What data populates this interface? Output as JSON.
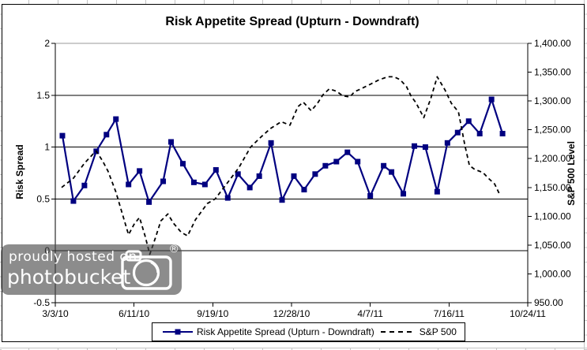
{
  "title": "Risk Appetite Spread (Upturn - Downdraft)",
  "axes": {
    "left": {
      "title": "Risk Spread"
    },
    "right": {
      "title": "S&P 500 Level"
    }
  },
  "legend": {
    "items": [
      {
        "label": "Risk Appetite Spread (Upturn - Downdraft)",
        "style": "solid-line-square-marker",
        "color": "#000080"
      },
      {
        "label": "S&P 500",
        "style": "dashed-line",
        "color": "#000000"
      }
    ]
  },
  "watermark": {
    "line1": "proudly hosted on",
    "line2": "photobucket",
    "registered_mark": "®"
  },
  "colors": {
    "risk_series": "#000080",
    "sp_series": "#000000",
    "gridline": "#000000",
    "plot_top_border": "#9a9a9a",
    "watermark_bg_rgba": "rgba(70,70,70,0.62)",
    "watermark_text": "#ffffff"
  },
  "chart_data": {
    "type": "line",
    "title": "Risk Appetite Spread (Upturn - Downdraft)",
    "x_unit": "days since 3/3/10",
    "xlim": [
      0,
      600
    ],
    "x_tick_days": [
      0,
      100,
      200,
      300,
      400,
      500,
      600
    ],
    "x_tick_labels": [
      "3/3/10",
      "6/11/10",
      "9/19/10",
      "12/28/10",
      "4/7/11",
      "7/16/11",
      "10/24/11"
    ],
    "left_ylim": [
      -0.5,
      2
    ],
    "left_ylabel": "Risk Spread",
    "left_tick_values": [
      2,
      1.5,
      1,
      0.5,
      0,
      -0.5
    ],
    "left_tick_labels": [
      "2",
      "1.5",
      "1",
      "0.5",
      "0",
      "-0.5"
    ],
    "right_ylim": [
      950,
      1400
    ],
    "right_ylabel": "S&P 500 Level",
    "right_tick_values": [
      1400,
      1350,
      1300,
      1250,
      1200,
      1150,
      1100,
      1050,
      1000,
      950
    ],
    "right_tick_labels": [
      "1,400.00",
      "1,350.00",
      "1,300.00",
      "1,250.00",
      "1,200.00",
      "1,150.00",
      "1,100.00",
      "1,050.00",
      "1,000.00",
      "950.00"
    ],
    "grid": "horizontal-black",
    "legend_position": "bottom",
    "series": [
      {
        "name": "Risk Appetite Spread (Upturn - Downdraft)",
        "axis": "left",
        "color": "#000080",
        "marker": "square",
        "line_style": "solid",
        "x_days": [
          9,
          23,
          37,
          52,
          65,
          77,
          93,
          107,
          119,
          137,
          147,
          162,
          176,
          190,
          204,
          219,
          232,
          247,
          259,
          274,
          288,
          303,
          316,
          330,
          343,
          357,
          371,
          384,
          400,
          417,
          427,
          442,
          456,
          470,
          485,
          498,
          511,
          525,
          539,
          554,
          568
        ],
        "values": [
          1.11,
          0.48,
          0.63,
          0.96,
          1.12,
          1.27,
          0.64,
          0.77,
          0.47,
          0.67,
          1.05,
          0.84,
          0.66,
          0.64,
          0.78,
          0.51,
          0.74,
          0.61,
          0.72,
          1.04,
          0.49,
          0.72,
          0.59,
          0.74,
          0.82,
          0.86,
          0.95,
          0.86,
          0.53,
          0.82,
          0.76,
          0.55,
          1.01,
          1.0,
          0.57,
          1.04,
          1.14,
          1.25,
          1.13,
          1.46,
          1.13
        ]
      },
      {
        "name": "S&P 500",
        "axis": "right",
        "color": "#000000",
        "marker": "none",
        "line_style": "dashed",
        "x_days": [
          8,
          23,
          37,
          48,
          52,
          60,
          67,
          77,
          85,
          93,
          100,
          107,
          114,
          120,
          127,
          134,
          143,
          150,
          160,
          168,
          178,
          193,
          203,
          218,
          233,
          248,
          260,
          273,
          287,
          298,
          308,
          315,
          325,
          333,
          340,
          348,
          357,
          365,
          374,
          380,
          388,
          400,
          410,
          422,
          430,
          438,
          446,
          452,
          458,
          468,
          477,
          485,
          495,
          503,
          512,
          520,
          526,
          533,
          543,
          550,
          558,
          565
        ],
        "values": [
          1150,
          1166,
          1192,
          1208,
          1213,
          1196,
          1178,
          1142,
          1105,
          1068,
          1086,
          1098,
          1066,
          1034,
          1062,
          1092,
          1104,
          1088,
          1072,
          1066,
          1094,
          1122,
          1130,
          1157,
          1184,
          1220,
          1236,
          1252,
          1264,
          1258,
          1290,
          1298,
          1283,
          1296,
          1311,
          1321,
          1317,
          1309,
          1307,
          1316,
          1321,
          1329,
          1336,
          1342,
          1342,
          1337,
          1325,
          1308,
          1297,
          1271,
          1305,
          1342,
          1319,
          1296,
          1281,
          1224,
          1188,
          1181,
          1176,
          1166,
          1156,
          1136
        ]
      }
    ]
  }
}
